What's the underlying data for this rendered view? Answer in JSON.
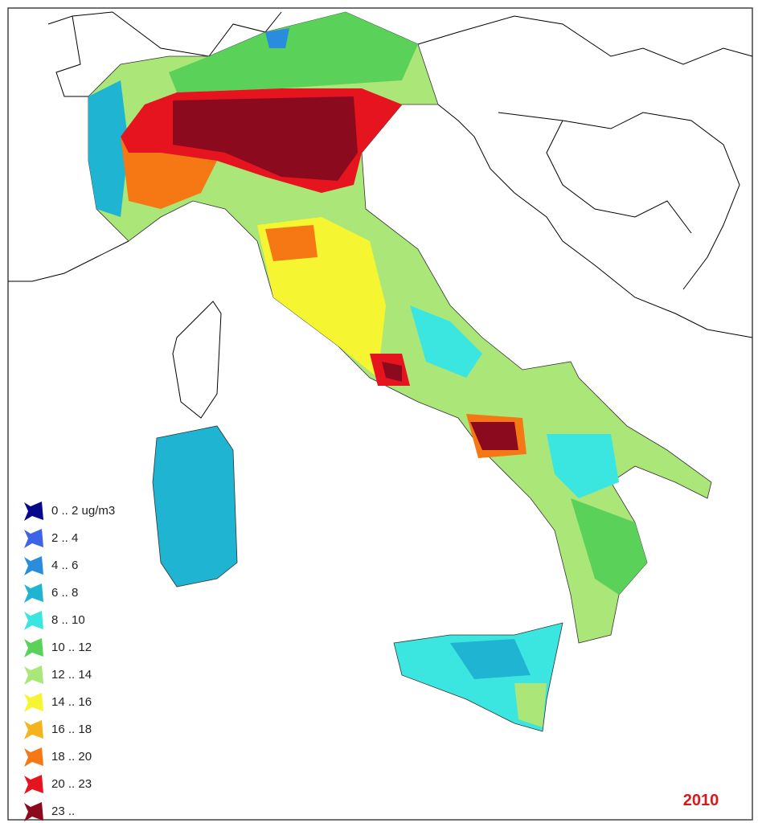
{
  "legend": {
    "items": [
      {
        "label": "0 .. 2 ug/m3",
        "color": "#08088c"
      },
      {
        "label": "2 .. 4",
        "color": "#3c64e6"
      },
      {
        "label": "4 .. 6",
        "color": "#2a8cdc"
      },
      {
        "label": "6 .. 8",
        "color": "#1eb4d2"
      },
      {
        "label": "8 .. 10",
        "color": "#3ce6e0"
      },
      {
        "label": "10 .. 12",
        "color": "#5ad25a"
      },
      {
        "label": "12 .. 14",
        "color": "#aae678"
      },
      {
        "label": "14 .. 16",
        "color": "#f5f532"
      },
      {
        "label": "16 .. 18",
        "color": "#f5b41e"
      },
      {
        "label": "18 .. 20",
        "color": "#f57814"
      },
      {
        "label": "20 .. 23",
        "color": "#e6141e"
      },
      {
        "label": "23 ..",
        "color": "#8c0a1e"
      }
    ]
  },
  "year": "2010"
}
